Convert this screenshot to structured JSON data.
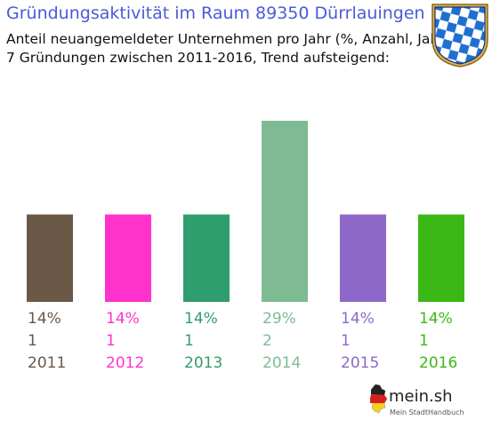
{
  "header": {
    "title": "Gründungsaktivität im Raum 89350 Dürrlauingen",
    "subtitle_line1": "Anteil neuangemeldeter Unternehmen pro Jahr (%, Anzahl, Jahr)",
    "subtitle_line2": "7 Gründungen zwischen 2011-2016, Trend aufsteigend:"
  },
  "brand": {
    "name": "mein.sh",
    "tagline": "Mein StadtHandbuch"
  },
  "colors": {
    "title": "#4a5bd6",
    "bavaria_blue": "#1f6fd1"
  },
  "chart_data": {
    "type": "bar",
    "categories": [
      "2011",
      "2012",
      "2013",
      "2014",
      "2015",
      "2016"
    ],
    "values": [
      14,
      14,
      14,
      29,
      14,
      14
    ],
    "value_labels": [
      "14%",
      "14%",
      "14%",
      "29%",
      "14%",
      "14%"
    ],
    "counts": [
      "1",
      "1",
      "1",
      "2",
      "1",
      "1"
    ],
    "colors": [
      "#6b5847",
      "#ff33cc",
      "#2e9e6e",
      "#7ebb93",
      "#8e68c9",
      "#3cb816"
    ],
    "ylim": [
      0,
      29
    ],
    "grid": false,
    "legend": "none"
  }
}
